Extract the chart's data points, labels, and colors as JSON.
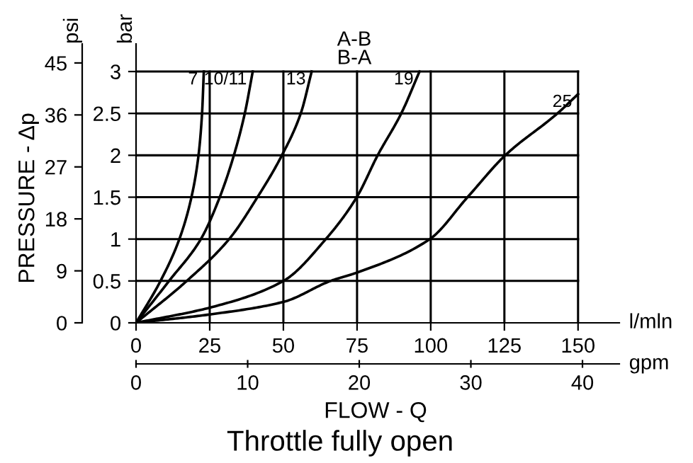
{
  "chart_data": {
    "type": "line",
    "title": "Throttle fully open",
    "xlabel": "l/mln",
    "ylabel": "bar",
    "y2label": "psi",
    "x2label": "gpm",
    "annotations": [
      "A-B\nB-A",
      "PRESSURE - Δp",
      "FLOW - Q"
    ],
    "xlim": [
      0,
      164
    ],
    "xticks": [
      0,
      25,
      50,
      75,
      100,
      125,
      150
    ],
    "ylim": [
      0,
      3.33
    ],
    "yticks": [
      0,
      0.5,
      1,
      1.5,
      2,
      2.5,
      3
    ],
    "y2lim": [
      0,
      48.3
    ],
    "y2ticks": [
      0,
      9,
      18,
      27,
      36,
      45
    ],
    "x2lim": [
      0,
      43.3
    ],
    "x2ticks": [
      0,
      10,
      20,
      30,
      40
    ],
    "grid": true,
    "legend": false,
    "marker": "none",
    "line_style": "solid",
    "series": [
      {
        "name": "7",
        "color": "#000000",
        "x": [
          0,
          8.3,
          14.7,
          18.8,
          21.2,
          22.4,
          23
        ],
        "values": [
          0,
          0.5,
          1,
          1.5,
          2,
          2.5,
          3
        ]
      },
      {
        "name": "10/11",
        "color": "#000000",
        "x": [
          0,
          11.2,
          22,
          28.4,
          33.2,
          36.9,
          39.6
        ],
        "values": [
          0,
          0.5,
          1,
          1.5,
          2,
          2.5,
          3
        ]
      },
      {
        "name": "13",
        "color": "#000000",
        "x": [
          0,
          17.2,
          31.6,
          41.2,
          49.5,
          55.9,
          59.6
        ],
        "values": [
          0,
          0.5,
          1,
          1.5,
          2,
          2.5,
          3
        ]
      },
      {
        "name": "19",
        "color": "#000000",
        "x": [
          0,
          26,
          50,
          64.4,
          74.9,
          82,
          90,
          96.2
        ],
        "values": [
          0,
          0.19,
          0.5,
          1,
          1.5,
          2,
          2.5,
          3
        ]
      },
      {
        "name": "25",
        "color": "#000000",
        "x": [
          0,
          25,
          50,
          66,
          75,
          99.7,
          112.5,
          125.3,
          143,
          150
        ],
        "values": [
          0,
          0.1,
          0.25,
          0.5,
          0.6,
          1,
          1.5,
          2,
          2.5,
          2.73
        ]
      }
    ]
  }
}
